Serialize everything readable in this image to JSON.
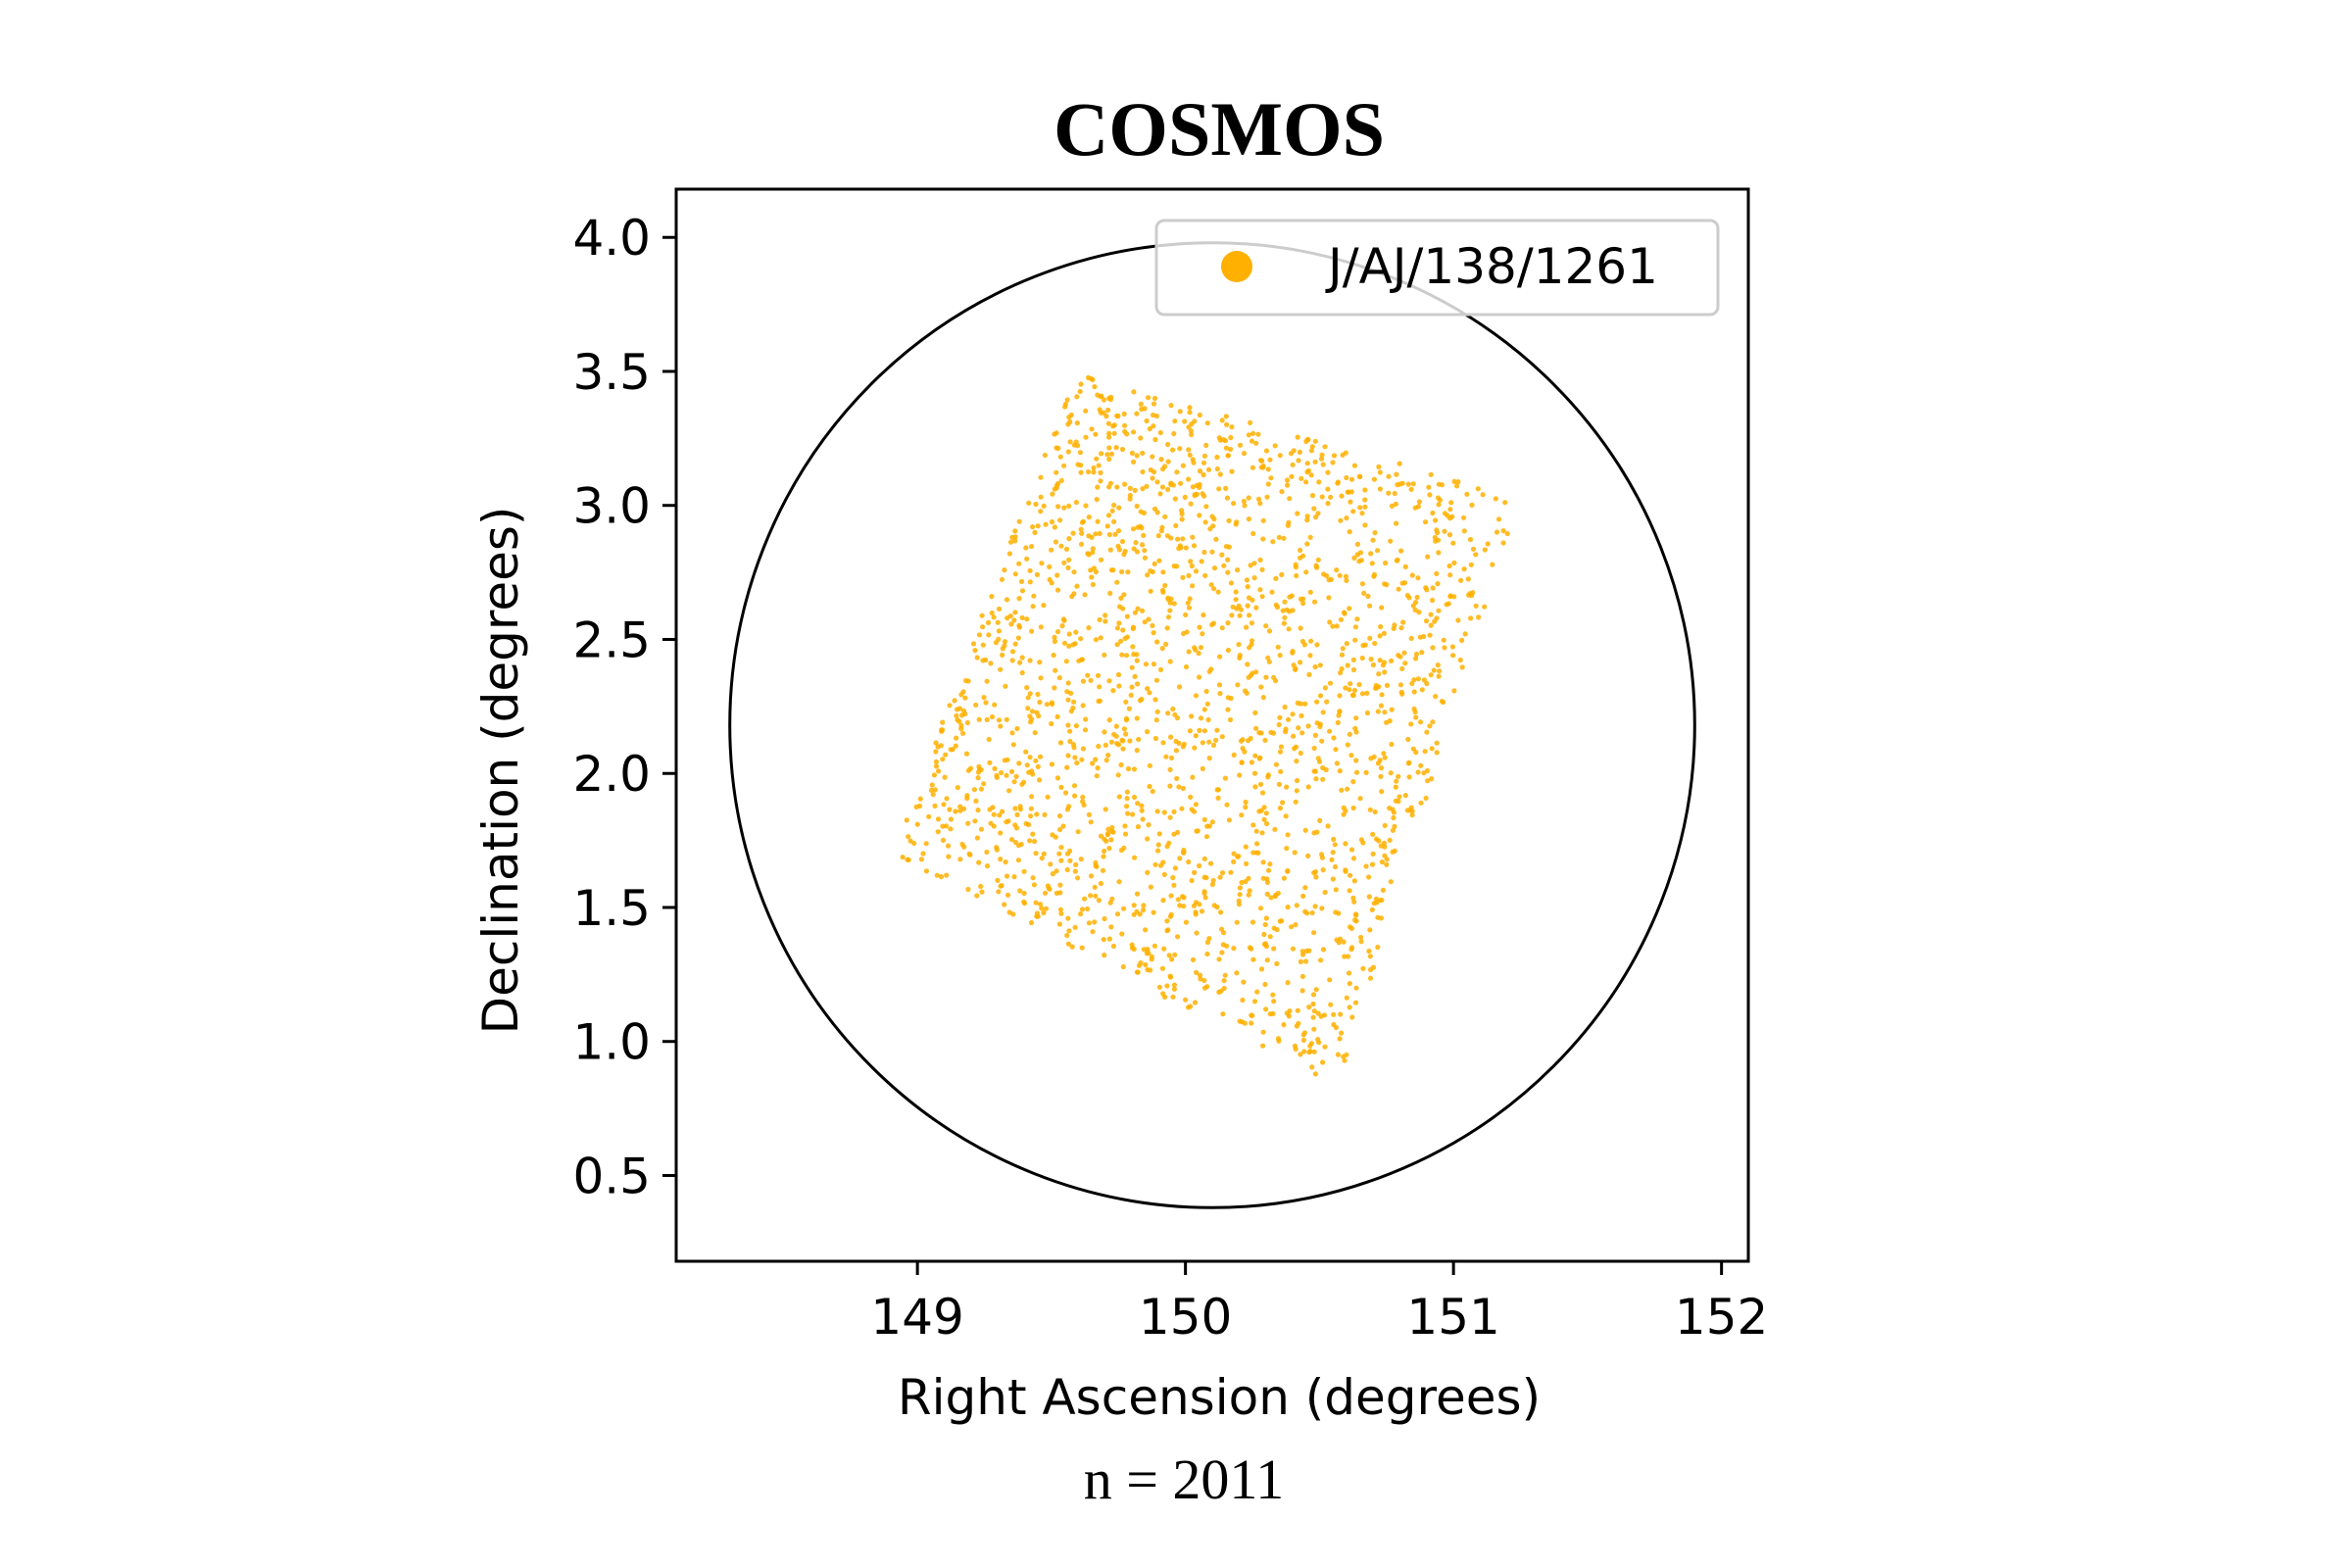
{
  "chart_data": {
    "type": "scatter",
    "title": "COSMOS",
    "xlabel": "Right Ascension (degrees)",
    "ylabel": "Declination (degrees)",
    "footnote": "n = 2011",
    "xlim": [
      148.1,
      152.1
    ],
    "ylim": [
      0.18,
      4.18
    ],
    "xticks": [
      149,
      150,
      151,
      152
    ],
    "yticks": [
      0.5,
      1.0,
      1.5,
      2.0,
      2.5,
      3.0,
      3.5,
      4.0
    ],
    "xtick_labels": [
      "149",
      "150",
      "151",
      "152"
    ],
    "ytick_labels": [
      "0.5",
      "1.0",
      "1.5",
      "2.0",
      "2.5",
      "3.0",
      "3.5",
      "4.0"
    ],
    "grid": false,
    "legend_position": "top-right",
    "series": [
      {
        "name": "J/AJ/138/1261",
        "color": "#FFB000",
        "count": 2011,
        "footprint_corners": [
          [
            148.95,
            1.72
          ],
          [
            149.6,
            3.45
          ],
          [
            151.2,
            3.0
          ],
          [
            150.55,
            0.88
          ]
        ]
      }
    ],
    "circle": {
      "center": [
        150.1,
        2.18
      ],
      "radius": 1.8,
      "color": "#000000"
    }
  }
}
